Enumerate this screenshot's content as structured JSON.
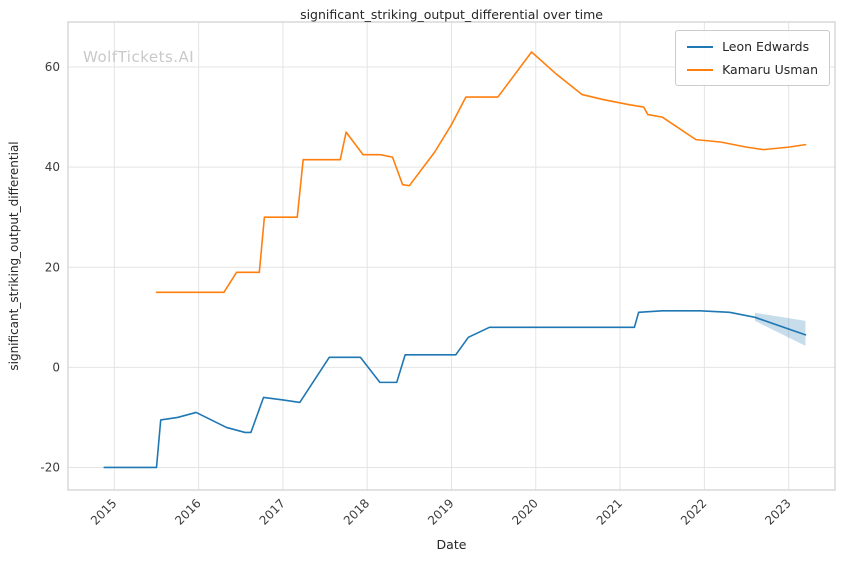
{
  "watermark": "WolfTickets.AI",
  "chart_data": {
    "type": "line",
    "title": "significant_striking_output_differential over time",
    "xlabel": "Date",
    "ylabel": "significant_striking_output_differential",
    "x_ticks": [
      2015,
      2016,
      2017,
      2018,
      2019,
      2020,
      2021,
      2022,
      2023
    ],
    "y_ticks": [
      -20,
      0,
      20,
      40,
      60
    ],
    "xlim": [
      2014.45,
      2023.55
    ],
    "ylim": [
      -24.5,
      69
    ],
    "grid": true,
    "legend_position": "top-right",
    "series": [
      {
        "name": "Leon Edwards",
        "color": "#1f77b4",
        "points": [
          [
            2014.88,
            -20
          ],
          [
            2015.5,
            -20
          ],
          [
            2015.55,
            -10.5
          ],
          [
            2015.75,
            -10
          ],
          [
            2015.97,
            -9
          ],
          [
            2016.33,
            -12
          ],
          [
            2016.55,
            -13
          ],
          [
            2016.62,
            -13
          ],
          [
            2016.77,
            -6
          ],
          [
            2017.0,
            -6.5
          ],
          [
            2017.2,
            -7
          ],
          [
            2017.55,
            2
          ],
          [
            2017.92,
            2
          ],
          [
            2018.15,
            -3
          ],
          [
            2018.35,
            -3
          ],
          [
            2018.45,
            2.5
          ],
          [
            2019.05,
            2.5
          ],
          [
            2019.2,
            6
          ],
          [
            2019.45,
            8
          ],
          [
            2019.9,
            8
          ],
          [
            2021.1,
            8
          ],
          [
            2021.17,
            8
          ],
          [
            2021.22,
            11
          ],
          [
            2021.5,
            11.3
          ],
          [
            2021.95,
            11.3
          ],
          [
            2022.3,
            11
          ],
          [
            2022.6,
            10
          ],
          [
            2023.2,
            6.5
          ]
        ]
      },
      {
        "name": "Kamaru Usman",
        "color": "#ff7f0e",
        "points": [
          [
            2015.5,
            15
          ],
          [
            2016.3,
            15
          ],
          [
            2016.45,
            19
          ],
          [
            2016.72,
            19
          ],
          [
            2016.78,
            30
          ],
          [
            2017.17,
            30
          ],
          [
            2017.24,
            41.5
          ],
          [
            2017.68,
            41.5
          ],
          [
            2017.75,
            47
          ],
          [
            2017.95,
            42.5
          ],
          [
            2018.15,
            42.5
          ],
          [
            2018.3,
            42
          ],
          [
            2018.42,
            36.5
          ],
          [
            2018.5,
            36.3
          ],
          [
            2018.8,
            43
          ],
          [
            2019.0,
            48.5
          ],
          [
            2019.17,
            54
          ],
          [
            2019.55,
            54
          ],
          [
            2019.95,
            63
          ],
          [
            2020.25,
            58.5
          ],
          [
            2020.55,
            54.5
          ],
          [
            2020.8,
            53.5
          ],
          [
            2021.1,
            52.5
          ],
          [
            2021.28,
            52
          ],
          [
            2021.33,
            50.5
          ],
          [
            2021.5,
            50
          ],
          [
            2021.9,
            45.5
          ],
          [
            2022.2,
            45
          ],
          [
            2022.5,
            44
          ],
          [
            2022.7,
            43.5
          ],
          [
            2023.0,
            44
          ],
          [
            2023.2,
            44.5
          ]
        ]
      }
    ],
    "band": {
      "series": "Leon Edwards",
      "color": "#1f77b4",
      "opacity": 0.25,
      "x": [
        2022.6,
        2023.2
      ],
      "upper": [
        10.9,
        9.3
      ],
      "lower": [
        9.3,
        4.3
      ]
    }
  }
}
